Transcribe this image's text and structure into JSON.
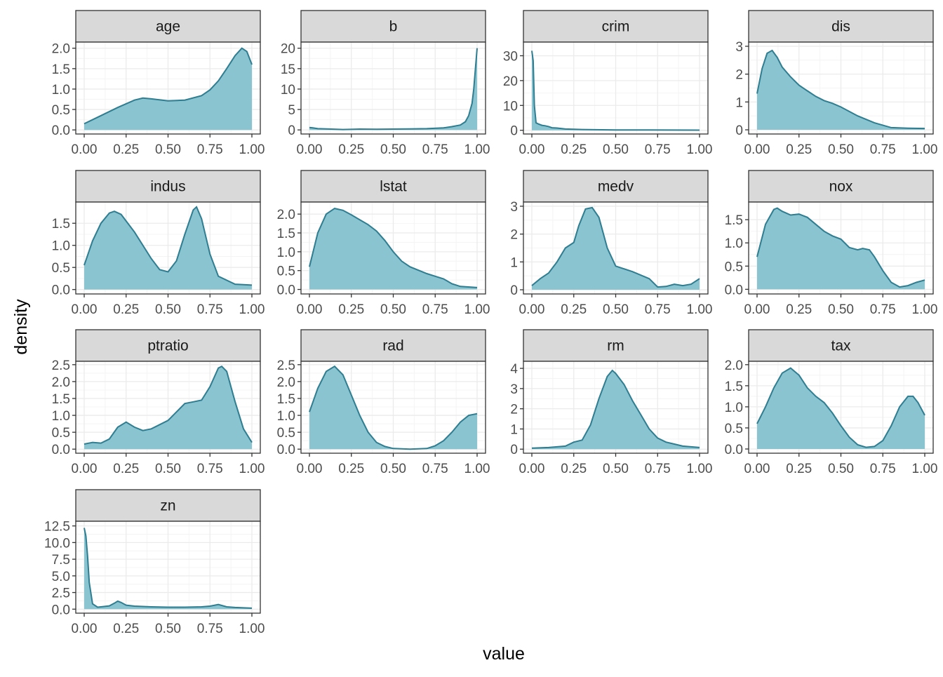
{
  "chart_data": {
    "type": "area",
    "title": "",
    "xlabel": "value",
    "ylabel": "density",
    "xlim": [
      0,
      1
    ],
    "xticks": [
      "0.00",
      "0.25",
      "0.50",
      "0.75",
      "1.00"
    ],
    "colors": {
      "fill": "#8AC4D0",
      "line": "#2E7D90",
      "strip": "#D9D9D9",
      "grid_major": "#EBEBEB",
      "grid_minor": "#F4F4F4",
      "panel_border": "#333333"
    },
    "panels": [
      {
        "name": "age",
        "ylim": [
          -0.1,
          2.15
        ],
        "yticks": [
          0.0,
          0.5,
          1.0,
          1.5,
          2.0
        ],
        "ytick_labels": [
          "0.0",
          "0.5",
          "1.0",
          "1.5",
          "2.0"
        ],
        "x": [
          0,
          0.1,
          0.2,
          0.3,
          0.35,
          0.4,
          0.5,
          0.6,
          0.7,
          0.75,
          0.8,
          0.85,
          0.9,
          0.94,
          0.97,
          1.0
        ],
        "y": [
          0.15,
          0.35,
          0.55,
          0.73,
          0.78,
          0.76,
          0.71,
          0.73,
          0.84,
          0.98,
          1.2,
          1.5,
          1.82,
          2.0,
          1.92,
          1.6
        ]
      },
      {
        "name": "b",
        "ylim": [
          -1,
          21.5
        ],
        "yticks": [
          0,
          5,
          10,
          15,
          20
        ],
        "ytick_labels": [
          "0",
          "5",
          "10",
          "15",
          "20"
        ],
        "x": [
          0,
          0.02,
          0.05,
          0.1,
          0.2,
          0.3,
          0.4,
          0.5,
          0.6,
          0.7,
          0.8,
          0.85,
          0.9,
          0.93,
          0.95,
          0.97,
          0.98,
          0.99,
          1.0
        ],
        "y": [
          0.6,
          0.5,
          0.3,
          0.25,
          0.1,
          0.2,
          0.15,
          0.2,
          0.25,
          0.3,
          0.5,
          0.8,
          1.2,
          2.0,
          3.5,
          6.5,
          10,
          15,
          20
        ]
      },
      {
        "name": "crim",
        "ylim": [
          -1.5,
          35.5
        ],
        "yticks": [
          0,
          10,
          20,
          30
        ],
        "ytick_labels": [
          "0",
          "10",
          "20",
          "30"
        ],
        "x": [
          0,
          0.008,
          0.015,
          0.025,
          0.04,
          0.06,
          0.08,
          0.1,
          0.12,
          0.15,
          0.2,
          0.3,
          0.5,
          0.7,
          1.0
        ],
        "y": [
          32,
          28,
          10,
          3,
          2.5,
          2.0,
          1.8,
          1.5,
          1.0,
          0.9,
          0.5,
          0.3,
          0.15,
          0.1,
          0.05
        ]
      },
      {
        "name": "dis",
        "ylim": [
          -0.15,
          3.15
        ],
        "yticks": [
          0,
          1,
          2,
          3
        ],
        "ytick_labels": [
          "0",
          "1",
          "2",
          "3"
        ],
        "x": [
          0,
          0.03,
          0.06,
          0.09,
          0.12,
          0.15,
          0.2,
          0.25,
          0.3,
          0.35,
          0.4,
          0.45,
          0.5,
          0.6,
          0.7,
          0.8,
          0.9,
          1.0
        ],
        "y": [
          1.3,
          2.2,
          2.75,
          2.85,
          2.6,
          2.25,
          1.9,
          1.6,
          1.4,
          1.2,
          1.05,
          0.95,
          0.82,
          0.5,
          0.25,
          0.08,
          0.06,
          0.05
        ]
      },
      {
        "name": "indus",
        "ylim": [
          -0.1,
          1.98
        ],
        "yticks": [
          0.0,
          0.5,
          1.0,
          1.5
        ],
        "ytick_labels": [
          "0.0",
          "0.5",
          "1.0",
          "1.5"
        ],
        "x": [
          0,
          0.05,
          0.1,
          0.15,
          0.18,
          0.22,
          0.3,
          0.4,
          0.45,
          0.5,
          0.55,
          0.6,
          0.65,
          0.67,
          0.7,
          0.75,
          0.8,
          0.9,
          1.0
        ],
        "y": [
          0.55,
          1.1,
          1.5,
          1.73,
          1.77,
          1.7,
          1.3,
          0.7,
          0.45,
          0.4,
          0.65,
          1.25,
          1.8,
          1.87,
          1.6,
          0.8,
          0.3,
          0.12,
          0.1
        ]
      },
      {
        "name": "lstat",
        "ylim": [
          -0.12,
          2.32
        ],
        "yticks": [
          0.0,
          0.5,
          1.0,
          1.5,
          2.0
        ],
        "ytick_labels": [
          "0.0",
          "0.5",
          "1.0",
          "1.5",
          "2.0"
        ],
        "x": [
          0,
          0.05,
          0.1,
          0.15,
          0.2,
          0.25,
          0.3,
          0.35,
          0.4,
          0.45,
          0.5,
          0.55,
          0.6,
          0.7,
          0.75,
          0.8,
          0.85,
          0.9,
          1.0
        ],
        "y": [
          0.6,
          1.5,
          2.0,
          2.15,
          2.1,
          1.98,
          1.85,
          1.72,
          1.55,
          1.3,
          1.0,
          0.75,
          0.6,
          0.42,
          0.35,
          0.28,
          0.15,
          0.08,
          0.05
        ]
      },
      {
        "name": "medv",
        "ylim": [
          -0.15,
          3.15
        ],
        "yticks": [
          0,
          1,
          2,
          3
        ],
        "ytick_labels": [
          "0",
          "1",
          "2",
          "3"
        ],
        "x": [
          0,
          0.05,
          0.1,
          0.15,
          0.2,
          0.25,
          0.28,
          0.32,
          0.36,
          0.4,
          0.45,
          0.5,
          0.6,
          0.7,
          0.75,
          0.8,
          0.85,
          0.9,
          0.95,
          1.0
        ],
        "y": [
          0.15,
          0.4,
          0.6,
          1.0,
          1.5,
          1.7,
          2.3,
          2.9,
          2.95,
          2.6,
          1.5,
          0.85,
          0.65,
          0.4,
          0.1,
          0.12,
          0.2,
          0.15,
          0.2,
          0.4
        ]
      },
      {
        "name": "nox",
        "ylim": [
          -0.1,
          1.88
        ],
        "yticks": [
          0.0,
          0.5,
          1.0,
          1.5
        ],
        "ytick_labels": [
          "0.0",
          "0.5",
          "1.0",
          "1.5"
        ],
        "x": [
          0,
          0.05,
          0.1,
          0.12,
          0.15,
          0.2,
          0.25,
          0.3,
          0.35,
          0.4,
          0.45,
          0.5,
          0.55,
          0.6,
          0.63,
          0.67,
          0.7,
          0.75,
          0.8,
          0.85,
          0.9,
          0.95,
          1.0
        ],
        "y": [
          0.7,
          1.4,
          1.72,
          1.75,
          1.68,
          1.6,
          1.62,
          1.55,
          1.4,
          1.25,
          1.15,
          1.08,
          0.9,
          0.85,
          0.88,
          0.85,
          0.7,
          0.4,
          0.15,
          0.05,
          0.08,
          0.15,
          0.2
        ]
      },
      {
        "name": "ptratio",
        "ylim": [
          -0.12,
          2.6
        ],
        "yticks": [
          0.0,
          0.5,
          1.0,
          1.5,
          2.0,
          2.5
        ],
        "ytick_labels": [
          "0.0",
          "0.5",
          "1.0",
          "1.5",
          "2.0",
          "2.5"
        ],
        "x": [
          0,
          0.05,
          0.1,
          0.15,
          0.2,
          0.25,
          0.3,
          0.35,
          0.4,
          0.5,
          0.55,
          0.6,
          0.65,
          0.7,
          0.75,
          0.8,
          0.82,
          0.85,
          0.9,
          0.95,
          1.0
        ],
        "y": [
          0.15,
          0.2,
          0.18,
          0.3,
          0.65,
          0.8,
          0.65,
          0.55,
          0.6,
          0.85,
          1.1,
          1.35,
          1.4,
          1.45,
          1.85,
          2.4,
          2.45,
          2.3,
          1.4,
          0.6,
          0.2
        ]
      },
      {
        "name": "rad",
        "ylim": [
          -0.12,
          2.6
        ],
        "yticks": [
          0.0,
          0.5,
          1.0,
          1.5,
          2.0,
          2.5
        ],
        "ytick_labels": [
          "0.0",
          "0.5",
          "1.0",
          "1.5",
          "2.0",
          "2.5"
        ],
        "x": [
          0,
          0.05,
          0.1,
          0.15,
          0.2,
          0.25,
          0.3,
          0.35,
          0.4,
          0.45,
          0.5,
          0.6,
          0.7,
          0.75,
          0.8,
          0.85,
          0.9,
          0.95,
          1.0
        ],
        "y": [
          1.1,
          1.8,
          2.3,
          2.45,
          2.2,
          1.6,
          1.0,
          0.5,
          0.2,
          0.08,
          0.02,
          0.0,
          0.02,
          0.1,
          0.25,
          0.5,
          0.8,
          1.0,
          1.05
        ]
      },
      {
        "name": "rm",
        "ylim": [
          -0.2,
          4.35
        ],
        "yticks": [
          0,
          1,
          2,
          3,
          4
        ],
        "ytick_labels": [
          "0",
          "1",
          "2",
          "3",
          "4"
        ],
        "x": [
          0,
          0.1,
          0.2,
          0.25,
          0.3,
          0.35,
          0.4,
          0.45,
          0.48,
          0.5,
          0.55,
          0.6,
          0.65,
          0.7,
          0.75,
          0.8,
          0.85,
          0.9,
          1.0
        ],
        "y": [
          0.05,
          0.08,
          0.15,
          0.35,
          0.45,
          1.2,
          2.5,
          3.6,
          3.9,
          3.75,
          3.2,
          2.4,
          1.7,
          1.0,
          0.55,
          0.35,
          0.25,
          0.15,
          0.08
        ]
      },
      {
        "name": "tax",
        "ylim": [
          -0.1,
          2.08
        ],
        "yticks": [
          0.0,
          0.5,
          1.0,
          1.5,
          2.0
        ],
        "ytick_labels": [
          "0.0",
          "0.5",
          "1.0",
          "1.5",
          "2.0"
        ],
        "x": [
          0,
          0.05,
          0.1,
          0.15,
          0.2,
          0.25,
          0.3,
          0.35,
          0.4,
          0.45,
          0.5,
          0.55,
          0.6,
          0.65,
          0.7,
          0.75,
          0.8,
          0.85,
          0.9,
          0.93,
          0.96,
          1.0
        ],
        "y": [
          0.6,
          1.0,
          1.45,
          1.8,
          1.92,
          1.75,
          1.45,
          1.25,
          1.1,
          0.85,
          0.55,
          0.28,
          0.1,
          0.04,
          0.06,
          0.2,
          0.55,
          1.0,
          1.25,
          1.25,
          1.1,
          0.8
        ]
      },
      {
        "name": "zn",
        "ylim": [
          -0.6,
          13.2
        ],
        "yticks": [
          0.0,
          2.5,
          5.0,
          7.5,
          10.0,
          12.5
        ],
        "ytick_labels": [
          "0.0",
          "2.5",
          "5.0",
          "7.5",
          "10.0",
          "12.5"
        ],
        "x": [
          0,
          0.01,
          0.02,
          0.03,
          0.05,
          0.08,
          0.1,
          0.15,
          0.18,
          0.2,
          0.22,
          0.25,
          0.3,
          0.4,
          0.5,
          0.6,
          0.7,
          0.75,
          0.8,
          0.85,
          0.9,
          1.0
        ],
        "y": [
          12.2,
          11.0,
          8.0,
          4.0,
          0.8,
          0.3,
          0.35,
          0.5,
          0.9,
          1.2,
          1.0,
          0.6,
          0.45,
          0.35,
          0.3,
          0.3,
          0.35,
          0.45,
          0.7,
          0.35,
          0.25,
          0.15
        ]
      }
    ]
  }
}
